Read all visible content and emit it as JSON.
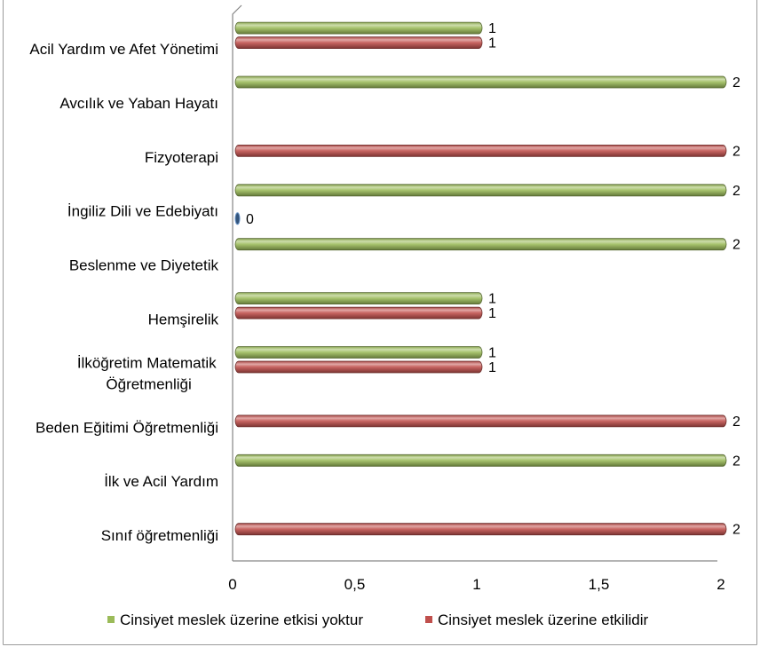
{
  "chart_data": {
    "type": "bar",
    "orientation": "horizontal",
    "categories": [
      "Acil Yardım ve Afet Yönetimi",
      "Avcılık ve Yaban Hayatı",
      "Fizyoterapi",
      "İngiliz Dili ve Edebiyatı",
      "Beslenme ve Diyetetik",
      "Hemşirelik",
      "İlköğretim Matematik Öğretmenliği",
      "Beden Eğitimi Öğretmenliği",
      "İlk ve Acil Yardım",
      "Sınıf öğretmenliği"
    ],
    "series": [
      {
        "name": "Cinsiyet meslek üzerine etkisi yoktur",
        "color": "#9BBB59",
        "values": [
          1,
          2,
          null,
          2,
          2,
          1,
          1,
          null,
          2,
          null
        ]
      },
      {
        "name": "Cinsiyet meslek üzerine etkilidir",
        "color": "#C0504D",
        "values": [
          1,
          null,
          2,
          null,
          null,
          1,
          1,
          2,
          null,
          2
        ]
      },
      {
        "color": "#4F81BD",
        "values": [
          null,
          null,
          null,
          0,
          null,
          null,
          null,
          null,
          null,
          null
        ]
      }
    ],
    "xlim": [
      0,
      2
    ],
    "xticks": [
      0,
      0.5,
      1,
      1.5,
      2
    ],
    "xtick_labels": [
      "0",
      "0,5",
      "1",
      "1,5",
      "2"
    ],
    "data_labels": true,
    "grid": false,
    "legend": "bottom"
  }
}
